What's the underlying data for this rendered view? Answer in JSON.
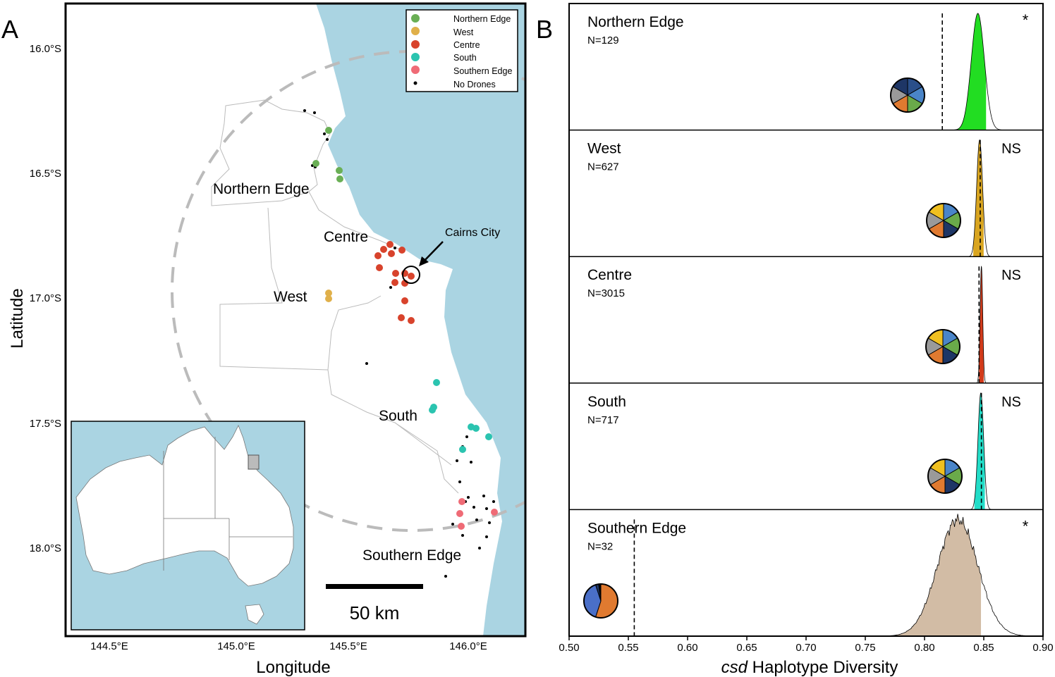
{
  "figure": {
    "panel_a_label": "A",
    "panel_b_label": "B"
  },
  "map": {
    "xlabel": "Longitude",
    "ylabel": "Latitude",
    "xticks": [
      "144.5°E",
      "145.0°E",
      "145.5°E",
      "146.0°E"
    ],
    "yticks": [
      "16.0°S",
      "16.5°S",
      "17.0°S",
      "17.5°S",
      "18.0°S"
    ],
    "region_labels": {
      "northern_edge": "Northern Edge",
      "centre": "Centre",
      "west": "West",
      "south": "South",
      "southern_edge": "Southern Edge"
    },
    "city_label": "Cairns City",
    "scale_label": "50 km",
    "legend": [
      {
        "label": "Northern Edge",
        "color": "#6aaf55"
      },
      {
        "label": "West",
        "color": "#e0b04a"
      },
      {
        "label": "Centre",
        "color": "#d8432c"
      },
      {
        "label": "South",
        "color": "#2bc4b0"
      },
      {
        "label": "Southern Edge",
        "color": "#ef6b76"
      },
      {
        "label": "No Drones",
        "color": "#000000"
      }
    ],
    "colors": {
      "sea": "#aad4e2",
      "land": "#ffffff",
      "boundary": "#bbbbbb",
      "circle": "#bbbbbb"
    }
  },
  "chart_data": {
    "type": "area",
    "xlabel_italic": "csd",
    "xlabel_rest": " Haplotype Diversity",
    "xlim": [
      0.5,
      0.9
    ],
    "xticks": [
      "0.50",
      "0.55",
      "0.60",
      "0.65",
      "0.70",
      "0.75",
      "0.80",
      "0.85",
      "0.90"
    ],
    "panels": [
      {
        "name": "Northern Edge",
        "n_label": "N=129",
        "sig": "*",
        "observed": 0.815,
        "mean": 0.845,
        "sd": 0.0055,
        "fill_low": 0.826,
        "fill_high": 0.852,
        "color": "#22dd22"
      },
      {
        "name": "West",
        "n_label": "N=627",
        "sig": "NS",
        "observed": 0.847,
        "mean": 0.8465,
        "sd": 0.0025,
        "fill_low": 0.841,
        "fill_high": 0.85,
        "color": "#d9a520"
      },
      {
        "name": "Centre",
        "n_label": "N=3015",
        "sig": "NS",
        "observed": 0.846,
        "mean": 0.848,
        "sd": 0.0011,
        "fill_low": 0.846,
        "fill_high": 0.85,
        "color": "#d23a1a"
      },
      {
        "name": "South",
        "n_label": "N=717",
        "sig": "NS",
        "observed": 0.848,
        "mean": 0.8475,
        "sd": 0.0024,
        "fill_low": 0.842,
        "fill_high": 0.851,
        "color": "#22ddc8"
      },
      {
        "name": "Southern Edge",
        "n_label": "N=32",
        "sig": "*",
        "observed": 0.555,
        "mean": 0.828,
        "sd": 0.017,
        "fill_low": 0.775,
        "fill_high": 0.848,
        "color": "#d2bca5"
      }
    ]
  }
}
